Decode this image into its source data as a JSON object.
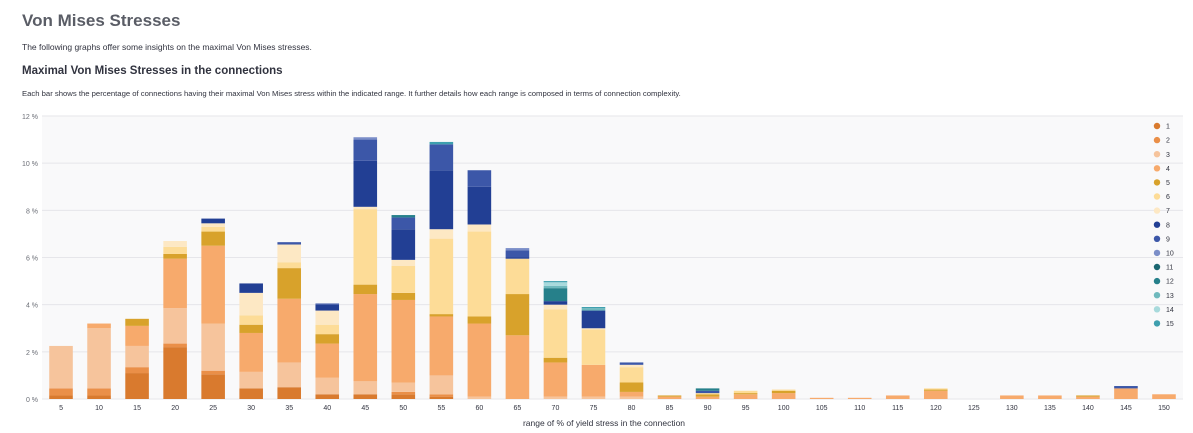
{
  "header": {
    "title": "Von Mises Stresses",
    "intro": "The following graphs offer some insights on the maximal Von Mises stresses."
  },
  "section": {
    "title": "Maximal Von Mises Stresses in the connections",
    "description": "Each bar shows the percentage of connections having their maximal Von Mises stress within the indicated range. It further details how each range is composed in terms of connection complexity."
  },
  "chart_data": {
    "type": "bar",
    "stacked": true,
    "xlabel": "range of % of yield stress in the connection",
    "ylabel": "",
    "ylim": [
      0,
      12
    ],
    "yticks": [
      0,
      2,
      4,
      6,
      8,
      10,
      12
    ],
    "ytick_labels": [
      "0 %",
      "2 %",
      "4 %",
      "6 %",
      "8 %",
      "10 %",
      "12 %"
    ],
    "grid": true,
    "legend_position": "right",
    "categories": [
      "5",
      "10",
      "15",
      "20",
      "25",
      "30",
      "35",
      "40",
      "45",
      "50",
      "55",
      "60",
      "65",
      "70",
      "75",
      "80",
      "85",
      "90",
      "95",
      "100",
      "105",
      "110",
      "115",
      "120",
      "125",
      "130",
      "135",
      "140",
      "145",
      "150"
    ],
    "series": [
      {
        "name": "1",
        "color": "#d97a2e",
        "values": [
          0.15,
          0.15,
          1.1,
          2.2,
          1.05,
          0.45,
          0.5,
          0.2,
          0.2,
          0.2,
          0.1,
          0,
          0,
          0,
          0,
          0,
          0,
          0,
          0,
          0,
          0,
          0,
          0,
          0,
          0,
          0,
          0,
          0,
          0,
          0
        ]
      },
      {
        "name": "2",
        "color": "#ea8f48",
        "values": [
          0.3,
          0.3,
          0.25,
          0.15,
          0.15,
          0,
          0,
          0,
          0,
          0.1,
          0.1,
          0,
          0,
          0,
          0,
          0,
          0,
          0,
          0,
          0,
          0,
          0,
          0,
          0,
          0,
          0,
          0,
          0,
          0,
          0
        ]
      },
      {
        "name": "3",
        "color": "#f6c49c",
        "values": [
          1.8,
          2.55,
          0.9,
          1.5,
          2.0,
          0.7,
          1.05,
          0.7,
          0.55,
          0.4,
          0.8,
          0.1,
          0,
          0.1,
          0.1,
          0.1,
          0,
          0,
          0,
          0,
          0,
          0,
          0,
          0,
          0,
          0,
          0,
          0,
          0,
          0
        ]
      },
      {
        "name": "4",
        "color": "#f7aa6c",
        "values": [
          0,
          0.2,
          0.85,
          2.1,
          3.3,
          1.65,
          2.7,
          1.45,
          3.7,
          3.5,
          2.5,
          3.1,
          2.7,
          1.45,
          1.35,
          0.2,
          0.1,
          0.1,
          0.2,
          0.25,
          0.05,
          0.05,
          0.15,
          0.35,
          0,
          0.15,
          0.15,
          0.1,
          0.45,
          0.2
        ]
      },
      {
        "name": "5",
        "color": "#d8a22b",
        "values": [
          0,
          0,
          0.3,
          0.2,
          0.6,
          0.35,
          1.3,
          0.4,
          0.4,
          0.3,
          0.1,
          0.3,
          1.75,
          0.2,
          0,
          0.4,
          0.05,
          0.1,
          0.05,
          0.1,
          0,
          0,
          0,
          0.05,
          0,
          0,
          0,
          0.05,
          0,
          0
        ]
      },
      {
        "name": "6",
        "color": "#fddc97",
        "values": [
          0,
          0,
          0,
          0.3,
          0.2,
          0.4,
          0.25,
          0.4,
          3.2,
          1.15,
          3.2,
          3.6,
          1.5,
          2.05,
          1.5,
          0.65,
          0,
          0.05,
          0.1,
          0.05,
          0,
          0,
          0,
          0.05,
          0,
          0,
          0,
          0,
          0,
          0
        ]
      },
      {
        "name": "7",
        "color": "#fde8c4",
        "values": [
          0,
          0,
          0,
          0.25,
          0.15,
          0.95,
          0.75,
          0.6,
          0.1,
          0.25,
          0.4,
          0.3,
          0,
          0.2,
          0.05,
          0.1,
          0,
          0,
          0,
          0,
          0,
          0,
          0,
          0,
          0,
          0,
          0,
          0,
          0,
          0
        ]
      },
      {
        "name": "8",
        "color": "#223f94",
        "values": [
          0,
          0,
          0,
          0,
          0.2,
          0.4,
          0,
          0.25,
          1.95,
          1.3,
          2.5,
          1.6,
          0.05,
          0.15,
          0.75,
          0,
          0,
          0,
          0,
          0,
          0,
          0,
          0,
          0,
          0,
          0,
          0,
          0,
          0,
          0
        ]
      },
      {
        "name": "9",
        "color": "#3c57a8",
        "values": [
          0,
          0,
          0,
          0,
          0,
          0,
          0.1,
          0.05,
          0.9,
          0.5,
          1.1,
          0.7,
          0.3,
          0,
          0,
          0.1,
          0,
          0.1,
          0,
          0,
          0,
          0,
          0,
          0,
          0,
          0,
          0,
          0,
          0.1,
          0
        ]
      },
      {
        "name": "10",
        "color": "#7b8ec8",
        "values": [
          0,
          0,
          0,
          0,
          0,
          0,
          0,
          0,
          0.1,
          0,
          0,
          0,
          0.1,
          0,
          0,
          0,
          0,
          0,
          0,
          0,
          0,
          0,
          0,
          0,
          0,
          0,
          0,
          0,
          0,
          0
        ]
      },
      {
        "name": "11",
        "color": "#1b6670",
        "values": [
          0,
          0,
          0,
          0,
          0,
          0,
          0,
          0,
          0,
          0,
          0,
          0,
          0,
          0,
          0,
          0,
          0,
          0,
          0,
          0,
          0,
          0,
          0,
          0,
          0,
          0,
          0,
          0,
          0,
          0
        ]
      },
      {
        "name": "12",
        "color": "#26808a",
        "values": [
          0,
          0,
          0,
          0,
          0,
          0,
          0,
          0,
          0,
          0.1,
          0,
          0,
          0,
          0.55,
          0,
          0,
          0,
          0.1,
          0,
          0,
          0,
          0,
          0,
          0,
          0,
          0,
          0,
          0,
          0,
          0
        ]
      },
      {
        "name": "13",
        "color": "#6fb9bd",
        "values": [
          0,
          0,
          0,
          0,
          0,
          0,
          0,
          0,
          0,
          0,
          0,
          0,
          0,
          0.1,
          0.1,
          0,
          0,
          0,
          0,
          0,
          0,
          0,
          0,
          0,
          0,
          0,
          0,
          0,
          0,
          0
        ]
      },
      {
        "name": "14",
        "color": "#a8dadc",
        "values": [
          0,
          0,
          0,
          0,
          0,
          0,
          0,
          0,
          0,
          0,
          0,
          0,
          0,
          0.15,
          0,
          0,
          0,
          0,
          0,
          0,
          0,
          0,
          0,
          0,
          0,
          0,
          0,
          0,
          0,
          0
        ]
      },
      {
        "name": "15",
        "color": "#3e9fae",
        "values": [
          0,
          0,
          0,
          0,
          0,
          0,
          0,
          0,
          0,
          0,
          0.1,
          0,
          0,
          0.05,
          0.05,
          0,
          0,
          0,
          0,
          0,
          0,
          0,
          0,
          0,
          0,
          0,
          0,
          0,
          0,
          0
        ]
      }
    ]
  }
}
